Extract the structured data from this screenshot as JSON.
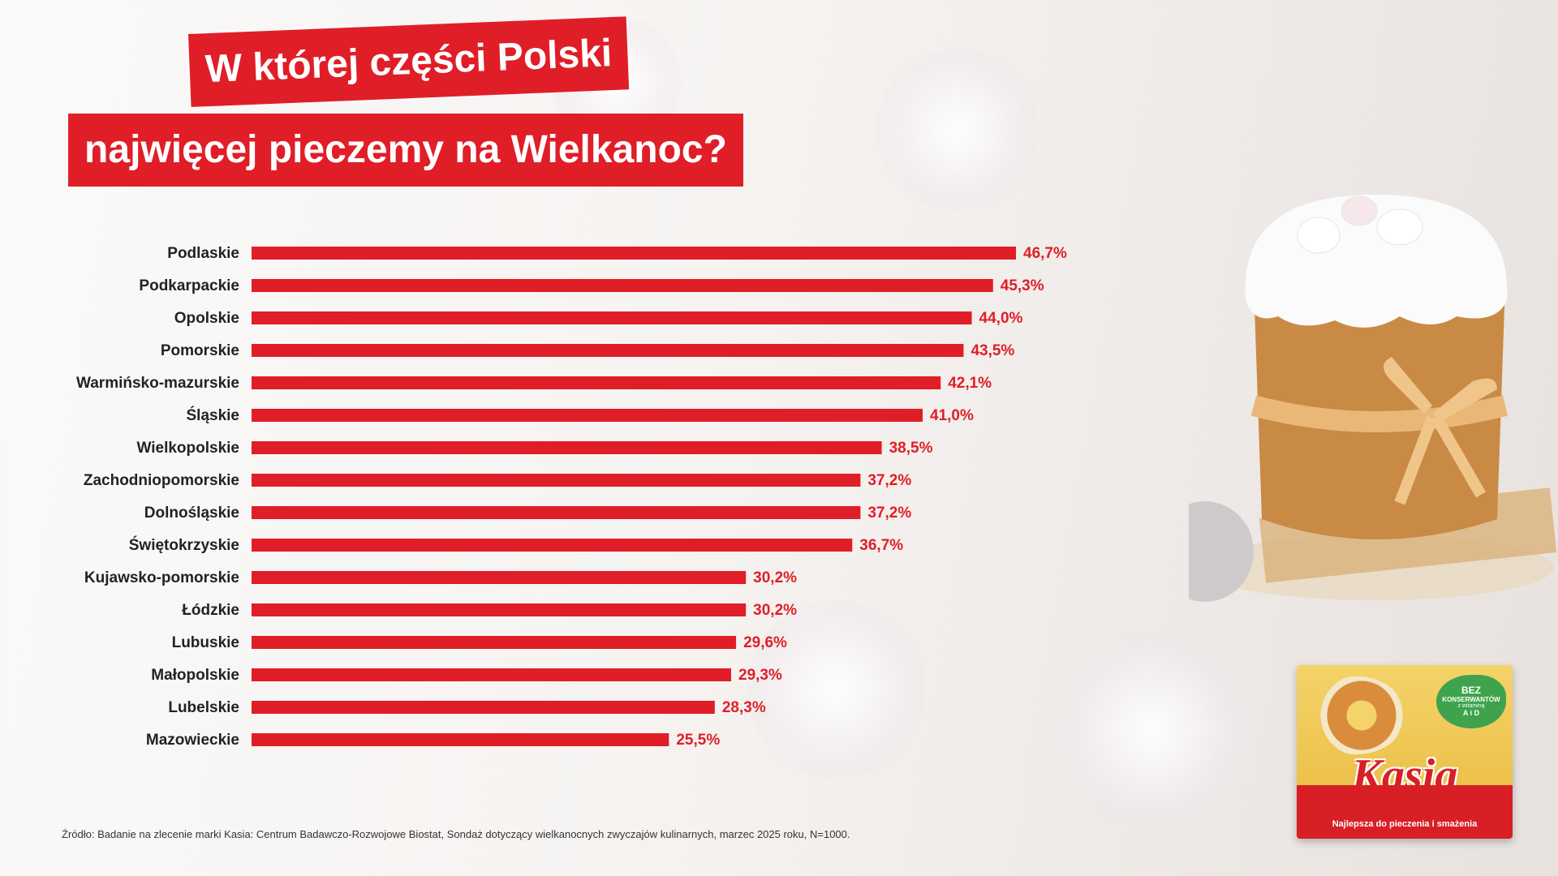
{
  "title": {
    "line1": "W której części Polski",
    "line2": "najwięcej pieczemy na Wielkanoc?"
  },
  "chart_data": {
    "type": "bar",
    "orientation": "horizontal",
    "categories": [
      "Podlaskie",
      "Podkarpackie",
      "Opolskie",
      "Pomorskie",
      "Warmińsko-mazurskie",
      "Śląskie",
      "Wielkopolskie",
      "Zachodniopomorskie",
      "Dolnośląskie",
      "Świętokrzyskie",
      "Kujawsko-pomorskie",
      "Łódzkie",
      "Lubuskie",
      "Małopolskie",
      "Lubelskie",
      "Mazowieckie"
    ],
    "values": [
      46.7,
      45.3,
      44.0,
      43.5,
      42.1,
      41.0,
      38.5,
      37.2,
      37.2,
      36.7,
      30.2,
      30.2,
      29.6,
      29.3,
      28.3,
      25.5
    ],
    "value_labels": [
      "46,7%",
      "45,3%",
      "44,0%",
      "43,5%",
      "42,1%",
      "41,0%",
      "38,5%",
      "37,2%",
      "37,2%",
      "36,7%",
      "30,2%",
      "30,2%",
      "29,6%",
      "29,3%",
      "28,3%",
      "25,5%"
    ],
    "unit": "%",
    "bar_color": "#e01e28",
    "label_color": "#e01e28",
    "xlim": [
      0,
      46.7
    ],
    "grid": false,
    "legend": "none"
  },
  "footer": {
    "source": "Źródło: Badanie na zlecenie marki Kasia: Centrum Badawczo-Rozwojowe Biostat, Sondaż dotyczący wielkanocnych zwyczajów kulinarnych, marzec 2025 roku, N=1000."
  },
  "product": {
    "badge_line1": "BEZ",
    "badge_line2": "KONSERWANTÓW",
    "badge_line3": "z witaminą",
    "badge_line4": "A i D",
    "brand": "Kasia",
    "tagline": "Najlepsza do pieczenia i smażenia",
    "brand_color": "#d81f26"
  }
}
